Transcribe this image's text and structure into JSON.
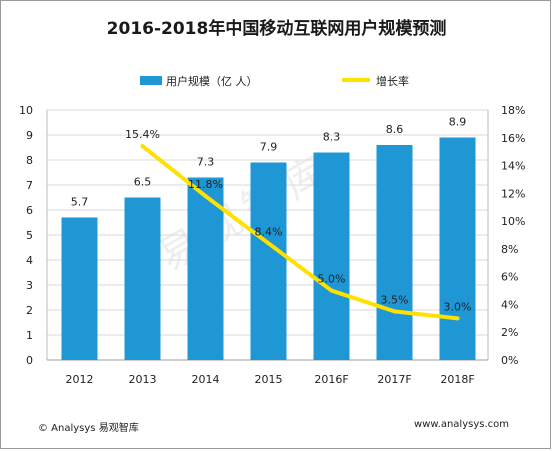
{
  "title": "2016-2018年中国移动互联网用户规模预测",
  "footer": {
    "source": "© Analysys 易观智库",
    "url": "www.analysys.com"
  },
  "watermark": "易观智库",
  "chart_data": {
    "type": "bar+line",
    "title": "2016-2018年中国移动互联网用户规模预测",
    "categories": [
      "2012",
      "2013",
      "2014",
      "2015",
      "2016F",
      "2017F",
      "2018F"
    ],
    "series": [
      {
        "name": "用户规模（亿 人）",
        "type": "bar",
        "axis": "left",
        "color": "#1f97d4",
        "values": [
          5.7,
          6.5,
          7.3,
          7.9,
          8.3,
          8.6,
          8.9
        ],
        "labels": [
          "5.7",
          "6.5",
          "7.3",
          "7.9",
          "8.3",
          "8.6",
          "8.9"
        ]
      },
      {
        "name": "增长率",
        "type": "line",
        "axis": "right",
        "color": "#ffe100",
        "x": [
          "2013",
          "2014",
          "2015",
          "2016F",
          "2017F",
          "2018F"
        ],
        "values": [
          15.4,
          11.8,
          8.4,
          5.0,
          3.5,
          3.0
        ],
        "labels": [
          "15.4%",
          "11.8%",
          "8.4%",
          "5.0%",
          "3.5%",
          "3.0%"
        ]
      }
    ],
    "ylim_left": [
      0,
      10
    ],
    "yticks_left": [
      "0",
      "1",
      "2",
      "3",
      "4",
      "5",
      "6",
      "7",
      "8",
      "9",
      "10"
    ],
    "ylim_right": [
      0,
      18
    ],
    "yticks_right": [
      "0%",
      "2%",
      "4%",
      "6%",
      "8%",
      "10%",
      "12%",
      "14%",
      "16%",
      "18%"
    ],
    "legend_position": "top",
    "grid": true
  }
}
